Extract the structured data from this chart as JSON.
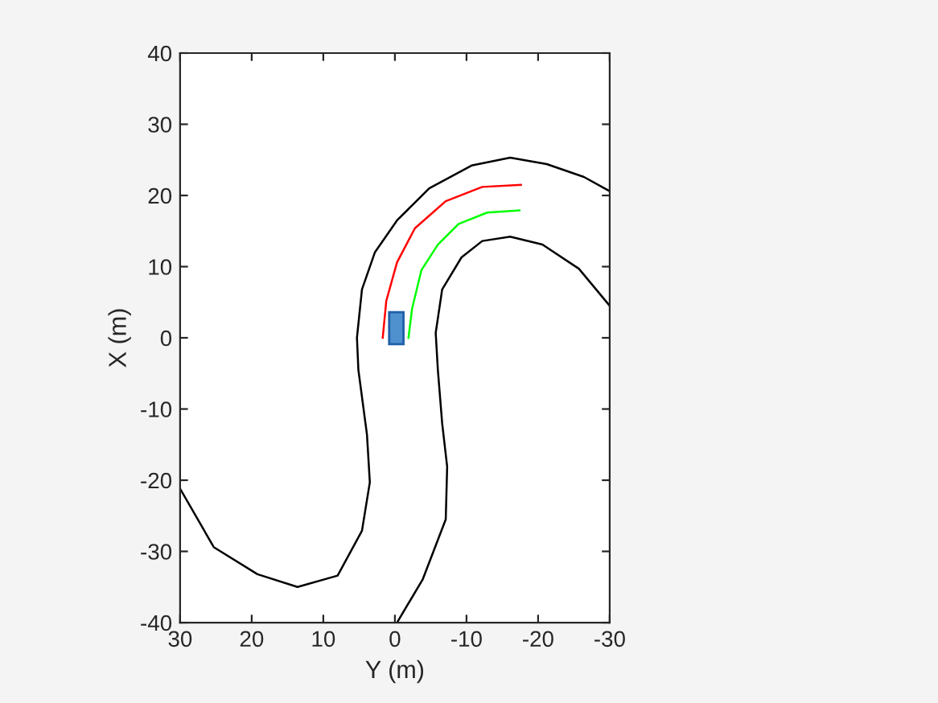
{
  "chart_data": {
    "type": "line",
    "xlabel": "Y (m)",
    "ylabel": "X (m)",
    "xlim": [
      30,
      -30
    ],
    "xticks": [
      30,
      20,
      10,
      0,
      -10,
      -20,
      -30
    ],
    "ylim": [
      -40,
      40
    ],
    "yticks": [
      -40,
      -30,
      -20,
      -10,
      0,
      10,
      20,
      30,
      40
    ],
    "grid": false,
    "marker": "none",
    "line_style": "solid",
    "series": [
      {
        "color": "#000000",
        "x": [
          30,
          25.3,
          19.2,
          13.6,
          8.0,
          4.6,
          3.5,
          3.9,
          5.1,
          5.3,
          4.6,
          2.8,
          -0.3,
          -4.8,
          -10.7,
          -16.1,
          -21.2,
          -26.4,
          -30
        ],
        "values": [
          -21.2,
          -29.4,
          -33.2,
          -35.0,
          -33.4,
          -27.1,
          -20.3,
          -13.6,
          -4.5,
          0,
          6.8,
          12.0,
          16.5,
          21.0,
          24.2,
          25.3,
          24.4,
          22.6,
          20.6
        ]
      },
      {
        "color": "#000000",
        "x": [
          -0.3,
          -3.9,
          -7.1,
          -7.3,
          -6.6,
          -6.0,
          -5.7,
          -6.6,
          -9.3,
          -12.2,
          -16.1,
          -20.6,
          -25.7,
          -30
        ],
        "values": [
          -40,
          -33.9,
          -25.5,
          -18.1,
          -12.0,
          -4.5,
          0.7,
          6.8,
          11.3,
          13.6,
          14.2,
          13.1,
          9.7,
          4.5
        ]
      },
      {
        "color": "#ff0000",
        "x": [
          1.7,
          1.2,
          -0.3,
          -2.8,
          -7.1,
          -12.2,
          -17.6
        ],
        "values": [
          0,
          5.2,
          10.6,
          15.4,
          19.2,
          21.2,
          21.5
        ]
      },
      {
        "color": "#00ff00",
        "x": [
          -1.9,
          -2.4,
          -3.7,
          -6.0,
          -8.9,
          -12.9,
          -17.4
        ],
        "values": [
          0,
          4.1,
          9.5,
          13.1,
          16.0,
          17.6,
          17.9
        ]
      },
      {
        "type": "area",
        "color": "#4f91cf",
        "x": [
          0.8,
          -1.2,
          -1.2,
          0.8
        ],
        "values": [
          -0.9,
          -0.9,
          3.6,
          3.6
        ]
      }
    ]
  }
}
